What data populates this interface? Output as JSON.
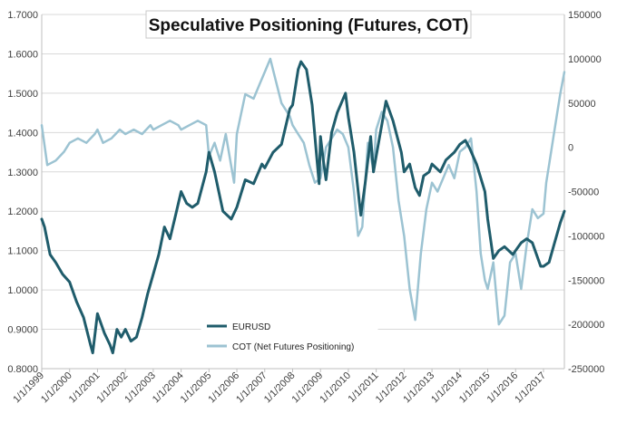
{
  "chart_data": {
    "type": "line",
    "title": "Speculative Positioning (Futures, COT)",
    "xlabel": "",
    "ylabel": "",
    "x_ticks": [
      "1/1/1999",
      "1/1/2000",
      "1/1/2001",
      "1/1/2002",
      "1/1/2003",
      "1/1/2004",
      "1/1/2005",
      "1/1/2006",
      "1/1/2007",
      "1/1/2008",
      "1/1/2009",
      "1/1/2010",
      "1/1/2011",
      "1/1/2012",
      "1/1/2013",
      "1/1/2014",
      "1/1/2015",
      "1/1/2016",
      "1/1/2017"
    ],
    "x_range": [
      1999.0,
      2017.75
    ],
    "y_left": {
      "range": [
        0.8,
        1.7
      ],
      "ticks": [
        "0.8000",
        "0.9000",
        "1.0000",
        "1.1000",
        "1.2000",
        "1.3000",
        "1.4000",
        "1.5000",
        "1.6000",
        "1.7000"
      ]
    },
    "y_right": {
      "range": [
        -250000,
        150000
      ],
      "ticks": [
        "-250000",
        "-200000",
        "-150000",
        "-100000",
        "-50000",
        "0",
        "50000",
        "100000",
        "150000"
      ]
    },
    "grid": true,
    "legend_position": "bottom-left",
    "series": [
      {
        "name": "EURUSD",
        "axis": "left",
        "color": "#1f5c6b",
        "x": [
          1999.0,
          1999.1,
          1999.3,
          1999.5,
          1999.75,
          2000.0,
          2000.25,
          2000.5,
          2000.75,
          2000.83,
          2001.0,
          2001.25,
          2001.45,
          2001.55,
          2001.7,
          2001.85,
          2002.0,
          2002.2,
          2002.4,
          2002.6,
          2002.8,
          2003.0,
          2003.2,
          2003.4,
          2003.6,
          2003.8,
          2004.0,
          2004.2,
          2004.4,
          2004.6,
          2004.9,
          2005.0,
          2005.2,
          2005.5,
          2005.8,
          2006.0,
          2006.3,
          2006.6,
          2006.9,
          2007.0,
          2007.3,
          2007.6,
          2007.9,
          2008.0,
          2008.2,
          2008.3,
          2008.5,
          2008.7,
          2008.85,
          2008.95,
          2009.0,
          2009.1,
          2009.2,
          2009.4,
          2009.6,
          2009.9,
          2010.0,
          2010.2,
          2010.4,
          2010.45,
          2010.6,
          2010.8,
          2010.9,
          2011.0,
          2011.2,
          2011.35,
          2011.6,
          2011.9,
          2012.0,
          2012.2,
          2012.4,
          2012.55,
          2012.7,
          2012.9,
          2013.0,
          2013.3,
          2013.5,
          2013.8,
          2014.0,
          2014.2,
          2014.35,
          2014.6,
          2014.9,
          2015.0,
          2015.1,
          2015.2,
          2015.4,
          2015.6,
          2015.9,
          2016.0,
          2016.2,
          2016.4,
          2016.6,
          2016.9,
          2017.0,
          2017.2,
          2017.4,
          2017.6,
          2017.75
        ],
        "y": [
          1.18,
          1.16,
          1.09,
          1.07,
          1.04,
          1.02,
          0.97,
          0.93,
          0.86,
          0.84,
          0.94,
          0.89,
          0.86,
          0.84,
          0.9,
          0.88,
          0.9,
          0.87,
          0.88,
          0.93,
          0.99,
          1.04,
          1.09,
          1.16,
          1.13,
          1.19,
          1.25,
          1.22,
          1.21,
          1.22,
          1.3,
          1.35,
          1.3,
          1.2,
          1.18,
          1.21,
          1.28,
          1.27,
          1.32,
          1.31,
          1.35,
          1.37,
          1.46,
          1.47,
          1.56,
          1.58,
          1.56,
          1.47,
          1.35,
          1.27,
          1.39,
          1.33,
          1.28,
          1.4,
          1.45,
          1.5,
          1.44,
          1.35,
          1.22,
          1.19,
          1.27,
          1.39,
          1.3,
          1.34,
          1.42,
          1.48,
          1.43,
          1.35,
          1.3,
          1.32,
          1.26,
          1.24,
          1.29,
          1.3,
          1.32,
          1.3,
          1.33,
          1.35,
          1.37,
          1.38,
          1.36,
          1.32,
          1.25,
          1.18,
          1.13,
          1.08,
          1.1,
          1.11,
          1.09,
          1.1,
          1.12,
          1.13,
          1.12,
          1.06,
          1.06,
          1.07,
          1.12,
          1.17,
          1.2
        ]
      },
      {
        "name": "COT (Net Futures Positioning)",
        "axis": "right",
        "color": "#9cc3d2",
        "x": [
          1999.0,
          1999.2,
          1999.5,
          1999.8,
          2000.0,
          2000.3,
          2000.6,
          2000.9,
          2001.0,
          2001.2,
          2001.5,
          2001.8,
          2002.0,
          2002.3,
          2002.6,
          2002.9,
          2003.0,
          2003.3,
          2003.6,
          2003.9,
          2004.0,
          2004.3,
          2004.6,
          2004.9,
          2005.0,
          2005.2,
          2005.4,
          2005.6,
          2005.9,
          2006.0,
          2006.3,
          2006.6,
          2006.8,
          2007.0,
          2007.2,
          2007.4,
          2007.6,
          2007.9,
          2008.0,
          2008.2,
          2008.4,
          2008.6,
          2008.8,
          2009.0,
          2009.2,
          2009.4,
          2009.6,
          2009.8,
          2010.0,
          2010.2,
          2010.35,
          2010.5,
          2010.7,
          2010.9,
          2011.0,
          2011.2,
          2011.4,
          2011.6,
          2011.8,
          2012.0,
          2012.2,
          2012.4,
          2012.6,
          2012.8,
          2013.0,
          2013.2,
          2013.4,
          2013.6,
          2013.8,
          2014.0,
          2014.2,
          2014.4,
          2014.5,
          2014.6,
          2014.75,
          2014.9,
          2015.0,
          2015.2,
          2015.4,
          2015.6,
          2015.8,
          2016.0,
          2016.2,
          2016.4,
          2016.6,
          2016.8,
          2017.0,
          2017.1,
          2017.2,
          2017.35,
          2017.5,
          2017.6,
          2017.75
        ],
        "y": [
          25000,
          -20000,
          -15000,
          -5000,
          5000,
          10000,
          5000,
          15000,
          20000,
          5000,
          10000,
          20000,
          15000,
          20000,
          15000,
          25000,
          20000,
          25000,
          30000,
          25000,
          20000,
          25000,
          30000,
          25000,
          -10000,
          5000,
          -15000,
          15000,
          -40000,
          15000,
          60000,
          55000,
          70000,
          85000,
          100000,
          75000,
          50000,
          35000,
          25000,
          15000,
          5000,
          -20000,
          -40000,
          -35000,
          0,
          10000,
          20000,
          15000,
          0,
          -50000,
          -100000,
          -90000,
          5000,
          -25000,
          20000,
          40000,
          30000,
          0,
          -60000,
          -100000,
          -160000,
          -195000,
          -120000,
          -70000,
          -40000,
          -50000,
          -35000,
          -20000,
          -35000,
          -5000,
          0,
          10000,
          -20000,
          -50000,
          -120000,
          -150000,
          -160000,
          -130000,
          -200000,
          -190000,
          -130000,
          -120000,
          -160000,
          -110000,
          -70000,
          -80000,
          -75000,
          -40000,
          -20000,
          10000,
          40000,
          60000,
          85000
        ]
      }
    ]
  },
  "legend": {
    "items": [
      "EURUSD",
      "COT (Net Futures Positioning)"
    ]
  }
}
